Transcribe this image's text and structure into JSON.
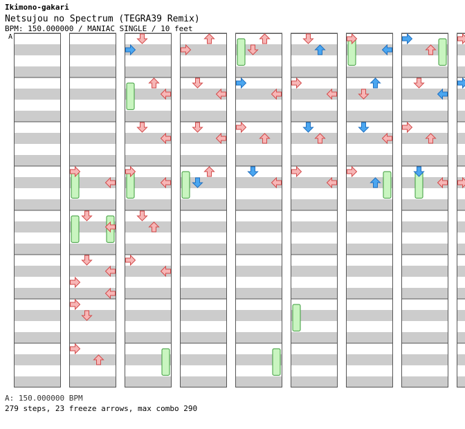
{
  "header": {
    "artist": "Ikimono-gakari",
    "title": "Netsujou no Spectrum (TEGRA39 Remix)",
    "info": "BPM: 150.000000 / MANIAC SINGLE / 10 feet",
    "bpm_marker": "A"
  },
  "footer": {
    "bpm_line": "A: 150.000000 BPM",
    "stats_line": "279 steps, 23 freeze arrows, max combo 290"
  },
  "colors": {
    "page_bg": "#ffffff",
    "stripe": "#cccccc",
    "lane_border": "#555555",
    "red_arrow_fill": "#f7b6b6",
    "red_arrow_stroke": "#d34a4a",
    "blue_arrow_fill": "#4aa6f0",
    "blue_arrow_stroke": "#1f6fc0",
    "freeze_fill": "#c9f5c0",
    "freeze_stroke": "#3a9a3a"
  },
  "chart_data": {
    "type": "step-chart",
    "mode": "MANIAC SINGLE",
    "bpm": 150,
    "columns_directions": [
      "left",
      "down",
      "up",
      "right"
    ],
    "lanes_shown": 8,
    "measures_per_lane": 8,
    "total_steps": 279,
    "freeze_arrows": 23,
    "max_combo": 290,
    "notes": [
      [
        1,
        4,
        8,
        "red",
        "left"
      ],
      [
        1,
        4,
        8,
        "red",
        "right"
      ],
      [
        1,
        5,
        8,
        "red",
        "down"
      ],
      [
        1,
        5,
        8,
        "red",
        "right"
      ],
      [
        1,
        6,
        8,
        "red",
        "down"
      ],
      [
        1,
        6,
        8,
        "red",
        "right"
      ],
      [
        1,
        6,
        8,
        "red",
        "left"
      ],
      [
        1,
        6,
        8,
        "red",
        "right"
      ],
      [
        1,
        7,
        8,
        "red",
        "left"
      ],
      [
        1,
        7,
        8,
        "red",
        "down"
      ],
      [
        1,
        8,
        8,
        "red",
        "left"
      ],
      [
        1,
        8,
        8,
        "red",
        "up"
      ],
      [
        2,
        1,
        8,
        "red",
        "down"
      ],
      [
        2,
        1,
        8,
        "blue",
        "left"
      ],
      [
        2,
        2,
        8,
        "red",
        "up"
      ],
      [
        2,
        2,
        8,
        "red",
        "right"
      ],
      [
        2,
        3,
        8,
        "red",
        "down"
      ],
      [
        2,
        3,
        8,
        "red",
        "right"
      ],
      [
        2,
        4,
        8,
        "red",
        "left"
      ],
      [
        2,
        4,
        8,
        "red",
        "right"
      ],
      [
        2,
        5,
        8,
        "red",
        "down"
      ],
      [
        2,
        5,
        8,
        "red",
        "up"
      ],
      [
        2,
        6,
        8,
        "red",
        "left"
      ],
      [
        2,
        6,
        8,
        "red",
        "right"
      ],
      [
        3,
        1,
        8,
        "red",
        "up"
      ],
      [
        3,
        1,
        8,
        "red",
        "left"
      ],
      [
        3,
        2,
        8,
        "red",
        "down"
      ],
      [
        3,
        2,
        8,
        "red",
        "right"
      ],
      [
        3,
        3,
        8,
        "red",
        "down"
      ],
      [
        3,
        3,
        8,
        "red",
        "right"
      ],
      [
        3,
        4,
        8,
        "red",
        "up"
      ],
      [
        3,
        4,
        8,
        "blue",
        "down"
      ],
      [
        4,
        1,
        8,
        "red",
        "up"
      ],
      [
        4,
        1,
        8,
        "red",
        "down"
      ],
      [
        4,
        2,
        8,
        "blue",
        "left"
      ],
      [
        4,
        2,
        8,
        "red",
        "right"
      ],
      [
        4,
        3,
        8,
        "red",
        "left"
      ],
      [
        4,
        3,
        8,
        "red",
        "up"
      ],
      [
        4,
        4,
        8,
        "blue",
        "down"
      ],
      [
        4,
        4,
        8,
        "red",
        "right"
      ],
      [
        5,
        1,
        8,
        "red",
        "down"
      ],
      [
        5,
        1,
        8,
        "blue",
        "up"
      ],
      [
        5,
        2,
        8,
        "red",
        "left"
      ],
      [
        5,
        2,
        8,
        "red",
        "right"
      ],
      [
        5,
        3,
        8,
        "blue",
        "down"
      ],
      [
        5,
        3,
        8,
        "red",
        "up"
      ],
      [
        5,
        4,
        8,
        "red",
        "left"
      ],
      [
        5,
        4,
        8,
        "red",
        "right"
      ],
      [
        6,
        1,
        8,
        "red",
        "left"
      ],
      [
        6,
        1,
        8,
        "blue",
        "right"
      ],
      [
        6,
        2,
        8,
        "blue",
        "up"
      ],
      [
        6,
        2,
        8,
        "red",
        "down"
      ],
      [
        6,
        3,
        8,
        "blue",
        "down"
      ],
      [
        6,
        3,
        8,
        "red",
        "right"
      ],
      [
        6,
        4,
        8,
        "red",
        "left"
      ],
      [
        6,
        4,
        8,
        "blue",
        "up"
      ],
      [
        7,
        1,
        8,
        "blue",
        "left"
      ],
      [
        7,
        1,
        8,
        "red",
        "up"
      ],
      [
        7,
        2,
        8,
        "red",
        "down"
      ],
      [
        7,
        2,
        8,
        "blue",
        "right"
      ],
      [
        7,
        3,
        8,
        "red",
        "left"
      ],
      [
        7,
        3,
        8,
        "red",
        "up"
      ],
      [
        7,
        4,
        8,
        "blue",
        "down"
      ],
      [
        7,
        4,
        8,
        "red",
        "right"
      ],
      [
        8,
        1,
        8,
        "red",
        "left"
      ],
      [
        8,
        1,
        8,
        "red",
        "right"
      ],
      [
        8,
        2,
        8,
        "blue",
        "left"
      ],
      [
        8,
        2,
        8,
        "red",
        "up"
      ],
      [
        8,
        3,
        8,
        "red",
        "down"
      ],
      [
        8,
        3,
        8,
        "red",
        "right"
      ],
      [
        8,
        4,
        8,
        "blue",
        "down"
      ],
      [
        8,
        4,
        8,
        "red",
        "left"
      ]
    ],
    "freezes": [
      [
        1,
        4,
        1,
        "left"
      ],
      [
        1,
        5,
        1,
        "left"
      ],
      [
        1,
        5,
        1,
        "right"
      ],
      [
        2,
        2,
        1,
        "left"
      ],
      [
        2,
        4,
        1,
        "left"
      ],
      [
        2,
        8,
        1,
        "right"
      ],
      [
        3,
        4,
        1,
        "left"
      ],
      [
        4,
        1,
        1,
        "left"
      ],
      [
        4,
        8,
        1,
        "right"
      ],
      [
        5,
        7,
        1,
        "left"
      ],
      [
        6,
        1,
        1,
        "left"
      ],
      [
        6,
        4,
        1,
        "right"
      ],
      [
        7,
        1,
        1,
        "right"
      ],
      [
        7,
        4,
        1,
        "down"
      ],
      [
        8,
        1,
        1,
        "right"
      ]
    ]
  }
}
